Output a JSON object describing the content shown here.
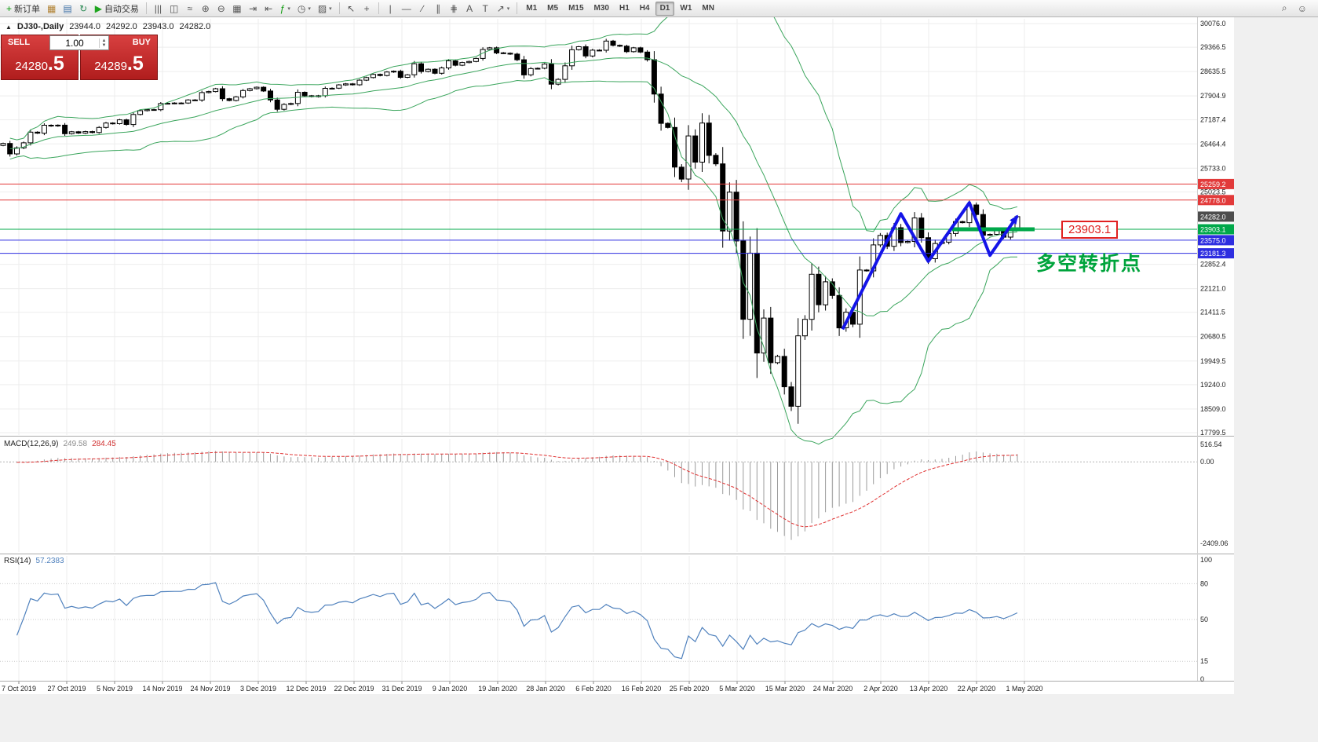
{
  "toolbar": {
    "groups": [
      {
        "name": "trade",
        "items": [
          {
            "name": "new-order",
            "glyph": "+",
            "glyph_color": "#0a9a0a",
            "label": "新订单"
          },
          {
            "name": "chart-window",
            "glyph": "▦",
            "glyph_color": "#b08030"
          },
          {
            "name": "profiles",
            "glyph": "▤",
            "glyph_color": "#3a6ea5"
          },
          {
            "name": "refresh",
            "glyph": "↻",
            "glyph_color": "#2e8b57"
          },
          {
            "name": "autotrading",
            "glyph": "▶",
            "glyph_color": "#1fa51f",
            "label": "自动交易"
          }
        ]
      },
      {
        "name": "chart-controls",
        "items": [
          {
            "name": "bars-chart",
            "glyph": "|||"
          },
          {
            "name": "candlestick-chart",
            "glyph": "◫"
          },
          {
            "name": "line-chart",
            "glyph": "≈"
          },
          {
            "name": "zoom-in",
            "glyph": "⊕"
          },
          {
            "name": "zoom-out",
            "glyph": "⊖"
          },
          {
            "name": "tile-windows",
            "glyph": "▦"
          },
          {
            "name": "auto-scroll",
            "glyph": "⇥"
          },
          {
            "name": "chart-shift",
            "glyph": "⇤"
          },
          {
            "name": "indicators",
            "glyph": "ƒ",
            "glyph_color": "#0a9a0a",
            "dropdown": true
          },
          {
            "name": "periods",
            "glyph": "◷",
            "dropdown": true
          },
          {
            "name": "templates",
            "glyph": "▨",
            "dropdown": true
          }
        ]
      },
      {
        "name": "pointer-tools",
        "items": [
          {
            "name": "cursor",
            "glyph": "↖"
          },
          {
            "name": "crosshair",
            "glyph": "+"
          }
        ]
      },
      {
        "name": "drawing-tools",
        "items": [
          {
            "name": "vertical-line",
            "glyph": "|"
          },
          {
            "name": "horizontal-line",
            "glyph": "—"
          },
          {
            "name": "trendline",
            "glyph": "∕"
          },
          {
            "name": "equidistant-channel",
            "glyph": "∥"
          },
          {
            "name": "fibonacci",
            "glyph": "⋕"
          },
          {
            "name": "text",
            "glyph": "A"
          },
          {
            "name": "text-label",
            "glyph": "T"
          },
          {
            "name": "arrows",
            "glyph": "↗",
            "dropdown": true
          }
        ]
      }
    ],
    "timeframes": [
      "M1",
      "M5",
      "M15",
      "M30",
      "H1",
      "H4",
      "D1",
      "W1",
      "MN"
    ],
    "active_timeframe": "D1",
    "right_icons": [
      {
        "name": "search",
        "glyph": "⌕"
      },
      {
        "name": "community",
        "glyph": "☺"
      }
    ]
  },
  "trade_panel": {
    "sell_label": "SELL",
    "buy_label": "BUY",
    "volume": "1.00",
    "sell_price": {
      "main": "24280",
      "fraction": ".5"
    },
    "buy_price": {
      "main": "24289",
      "fraction": ".5"
    }
  },
  "chart_header": {
    "symbol_period": "DJ30-,Daily",
    "open": "23944.0",
    "high": "24292.0",
    "low": "23943.0",
    "close": "24282.0"
  },
  "indicators": {
    "macd_label": "MACD(12,26,9)",
    "macd_value": "249.58",
    "macd_signal": "284.45",
    "macd_axis": [
      "516.54",
      "0.00",
      "-2409.06"
    ],
    "rsi_label": "RSI(14)",
    "rsi_value": "57.2383",
    "rsi_axis": [
      "100",
      "80",
      "50",
      "15",
      "0"
    ],
    "rsi_levels": [
      80,
      50,
      15
    ]
  },
  "annotations": {
    "price_callout": "23903.1",
    "cn_note": "多空转折点"
  },
  "colors": {
    "up_candle": "#ffffff",
    "down_candle": "#000000",
    "candle_stroke": "#000000",
    "bollinger": "#3aa55c",
    "zigzag": "#1414e8",
    "rsi_line": "#4f81bd",
    "macd_signal": "#e03030",
    "macd_histogram": "#9b9b9b",
    "grid": "#ededed",
    "axis_text": "#222222",
    "level_red": "#e23a3a",
    "level_green": "#00a84a",
    "level_blue": "#2e2ee0",
    "level_current": "#4d4d4d"
  },
  "chart_data": {
    "type": "candlestick",
    "symbol": "DJ30",
    "timeframe": "Daily",
    "price_min": 17799.5,
    "price_max": 30076.0,
    "y_ticks": [
      30076.0,
      29366.5,
      28635.5,
      27904.9,
      27187.4,
      26464.4,
      25733.0,
      25023.5,
      22852.4,
      22121.0,
      21411.5,
      20680.5,
      19949.5,
      19240.0,
      18509.0,
      17799.5
    ],
    "dates": [
      "7 Oct 2019",
      "27 Oct 2019",
      "5 Nov 2019",
      "14 Nov 2019",
      "24 Nov 2019",
      "3 Dec 2019",
      "12 Dec 2019",
      "22 Dec 2019",
      "31 Dec 2019",
      "9 Jan 2020",
      "19 Jan 2020",
      "28 Jan 2020",
      "6 Feb 2020",
      "16 Feb 2020",
      "25 Feb 2020",
      "5 Mar 2020",
      "15 Mar 2020",
      "24 Mar 2020",
      "2 Apr 2020",
      "13 Apr 2020",
      "22 Apr 2020",
      "1 May 2020"
    ],
    "closes": [
      26478,
      26164,
      26346,
      26496,
      26817,
      26787,
      27025,
      27002,
      27026,
      26770,
      26828,
      26788,
      26834,
      26805,
      26958,
      27090,
      27071,
      27186,
      27046,
      27347,
      27462,
      27493,
      27492,
      27675,
      27681,
      27691,
      27691,
      27784,
      27782,
      28005,
      28036,
      28121,
      27821,
      27766,
      27875,
      28066,
      28121,
      28164,
      28051,
      27783,
      27503,
      27650,
      27678,
      28015,
      27910,
      27882,
      27911,
      28132,
      28135,
      28235,
      28267,
      28239,
      28377,
      28455,
      28551,
      28516,
      28621,
      28645,
      28462,
      28538,
      28869,
      28635,
      28704,
      28584,
      28745,
      28957,
      28824,
      28907,
      28939,
      29030,
      29298,
      29348,
      29196,
      29186,
      29160,
      28990,
      28536,
      28723,
      28734,
      28859,
      28256,
      28400,
      28808,
      29291,
      29380,
      29103,
      29277,
      29276,
      29551,
      29423,
      29398,
      29232,
      29348,
      29220,
      28992,
      27961,
      27081,
      26958,
      25767,
      25409,
      26703,
      25917,
      27091,
      26121,
      25865,
      23851,
      25018,
      23553,
      21201,
      23186,
      20188,
      21237,
      19899,
      20087,
      19174,
      18592,
      20705,
      21200,
      22552,
      21637,
      22327,
      21917,
      20944,
      21413,
      21053,
      22680,
      22654,
      23434,
      23719,
      23391,
      23950,
      23504,
      23537,
      24242,
      23650,
      23018,
      23476,
      23515,
      23775,
      24134,
      24102,
      24634,
      24346,
      23724,
      23749,
      23883,
      23665,
      23944,
      24282
    ],
    "last_candle": {
      "open": 23944.0,
      "high": 24292.0,
      "low": 23943.0,
      "close": 24282.0
    },
    "levels": [
      {
        "value": 25259.2,
        "color": "#e23a3a",
        "line": true
      },
      {
        "value": 24778.0,
        "color": "#e23a3a",
        "line": true
      },
      {
        "value": 24282.0,
        "color": "#4d4d4d",
        "line": false
      },
      {
        "value": 23903.1,
        "color": "#00a84a",
        "line": true,
        "thick": [
          1213,
          1318
        ]
      },
      {
        "value": 23575.0,
        "color": "#2e2ee0",
        "line": true
      },
      {
        "value": 23181.3,
        "color": "#2e2ee0",
        "line": true
      }
    ],
    "zigzag": [
      [
        122.5,
        20900
      ],
      [
        131,
        24370
      ],
      [
        135,
        22940
      ],
      [
        141,
        24700
      ],
      [
        144,
        23120
      ],
      [
        148,
        24300
      ]
    ],
    "bollinger": {
      "period": 20,
      "deviation": 2
    },
    "macd": {
      "fast": 12,
      "slow": 26,
      "signal": 9,
      "value_max": 516.54,
      "value_min": -2409.06
    },
    "rsi": {
      "period": 14
    }
  }
}
